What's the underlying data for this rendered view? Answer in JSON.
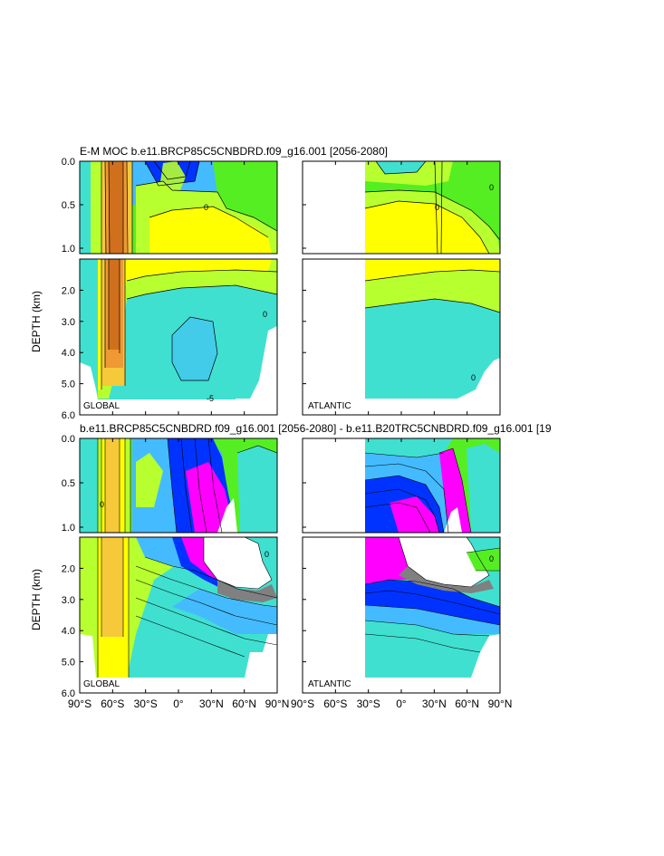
{
  "figure": {
    "title_top": "E-M MOC  b.e11.BRCP85C5CNBDRD.f09_g16.001 [2056-2080]",
    "title_bottom": "b.e11.BRCP85C5CNBDRD.f09_g16.001 [2056-2080] - b.e11.B20TRC5CNBDRD.f09_g16.001 [19",
    "ylabel": "DEPTH (km)",
    "panel_labels": {
      "global": "GLOBAL",
      "atlantic": "ATLANTIC"
    },
    "contour_labels": {
      "zero": "0",
      "minus": "-5"
    }
  },
  "chart_data": [
    {
      "type": "heatmap",
      "panel": "top-left",
      "region": "GLOBAL",
      "x_ticks": [
        "90°S",
        "60°S",
        "30°S",
        "0°",
        "30°N",
        "60°N",
        "90°N"
      ],
      "xlim": [
        -90,
        90
      ],
      "y_upper": {
        "ticks": [
          "0.0",
          "0.5",
          "1.0"
        ],
        "range_km": [
          0,
          1
        ]
      },
      "y_lower": {
        "ticks": [
          "2.0",
          "3.0",
          "4.0",
          "5.0",
          "6.0"
        ],
        "range_km": [
          1,
          6
        ]
      },
      "palette": [
        "#d0701c",
        "#ee9933",
        "#f5c93a",
        "#ffff00",
        "#b8ff2f",
        "#55ee22",
        "#40e0d0",
        "#44bbff",
        "#0033ff",
        "#ff00ff",
        "#808080"
      ]
    },
    {
      "type": "heatmap",
      "panel": "top-right",
      "region": "ATLANTIC",
      "x_ticks": [
        "90°S",
        "60°S",
        "30°S",
        "0°",
        "30°N",
        "60°N",
        "90°N"
      ],
      "xlim": [
        -90,
        90
      ],
      "y_upper": {
        "ticks": [
          "0.0",
          "0.5",
          "1.0"
        ],
        "range_km": [
          0,
          1
        ]
      },
      "y_lower": {
        "ticks": [
          "2.0",
          "3.0",
          "4.0",
          "5.0",
          "6.0"
        ],
        "range_km": [
          1,
          6
        ]
      }
    },
    {
      "type": "heatmap",
      "panel": "bottom-left",
      "region": "GLOBAL",
      "x_ticks": [
        "90°S",
        "60°S",
        "30°S",
        "0°",
        "30°N",
        "60°N",
        "90°N"
      ],
      "xlim": [
        -90,
        90
      ],
      "y_upper": {
        "ticks": [
          "0.0",
          "0.5",
          "1.0"
        ],
        "range_km": [
          0,
          1
        ]
      },
      "y_lower": {
        "ticks": [
          "2.0",
          "3.0",
          "4.0",
          "5.0",
          "6.0"
        ],
        "range_km": [
          1,
          6
        ]
      }
    },
    {
      "type": "heatmap",
      "panel": "bottom-right",
      "region": "ATLANTIC",
      "x_ticks": [
        "90°S",
        "60°S",
        "30°S",
        "0°",
        "30°N",
        "60°N",
        "90°N"
      ],
      "xlim": [
        -90,
        90
      ],
      "y_upper": {
        "ticks": [
          "0.0",
          "0.5",
          "1.0"
        ],
        "range_km": [
          0,
          1
        ]
      },
      "y_lower": {
        "ticks": [
          "2.0",
          "3.0",
          "4.0",
          "5.0",
          "6.0"
        ],
        "range_km": [
          1,
          6
        ]
      }
    }
  ]
}
